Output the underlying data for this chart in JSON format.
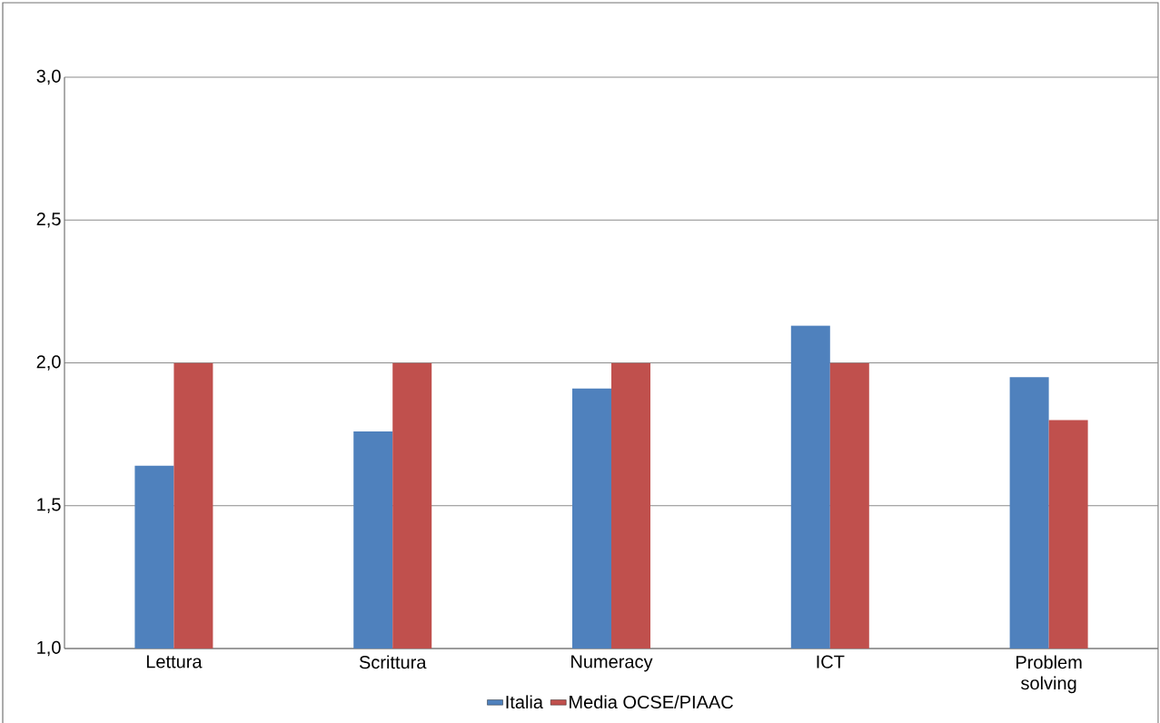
{
  "chart_data": {
    "type": "bar",
    "categories": [
      "Lettura",
      "Scrittura",
      "Numeracy",
      "ICT",
      "Problem solving"
    ],
    "series": [
      {
        "name": "Italia",
        "color": "#4f81bd",
        "values": [
          1.64,
          1.76,
          1.91,
          2.13,
          1.95
        ]
      },
      {
        "name": "Media OCSE/PIAAC",
        "color": "#c0504d",
        "values": [
          2.0,
          2.0,
          2.0,
          2.0,
          1.8
        ]
      }
    ],
    "ylim": [
      1,
      3
    ],
    "yticks": [
      {
        "value": 1,
        "label": "1,0"
      },
      {
        "value": 1.5,
        "label": "1,5"
      },
      {
        "value": 2,
        "label": "2,0"
      },
      {
        "value": 2.5,
        "label": "2,5"
      },
      {
        "value": 3,
        "label": "3,0"
      }
    ],
    "grid": "y",
    "legend": "bottom"
  }
}
